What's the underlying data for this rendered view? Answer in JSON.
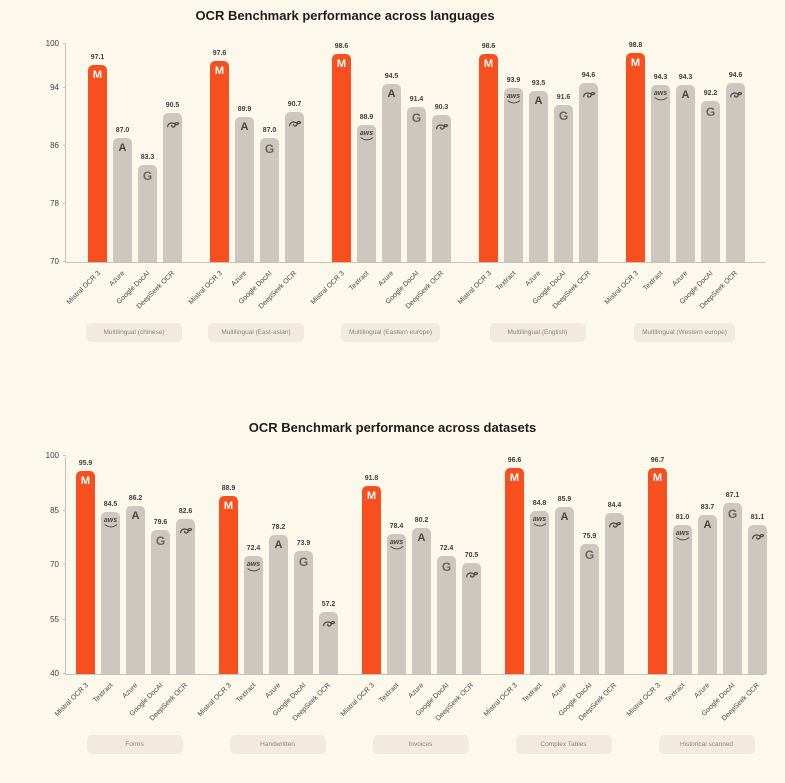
{
  "page": {
    "background_color": "#FDF8EC"
  },
  "colors": {
    "page_bg": "#FDF8EC",
    "accent_orange": "#F7501E",
    "bar_gray": "#CEC7C0",
    "icon_dark": "#4A443E",
    "axis_line": "#C9C2B8",
    "tick_text": "#3f3f3f",
    "value_text": "#3f3f3f",
    "xlabel_text": "#4a4a4a",
    "pill_bg": "#F2EBDD",
    "pill_text": "#8A837A",
    "title_text": "#1d1d1d"
  },
  "icons": {
    "Mistral OCR 3": "mistral-m-icon",
    "Textract": "aws-icon",
    "Azure": "azure-a-icon",
    "Google DocAI": "google-g-icon",
    "DeepSeek OCR": "deepseek-whale-icon"
  },
  "chart_data": [
    {
      "type": "bar",
      "title": "OCR Benchmark performance across languages",
      "ylabel": "",
      "xlabel": "",
      "ylim": [
        70,
        100
      ],
      "yticks": [
        70,
        78,
        86,
        94,
        100
      ],
      "grid": false,
      "legend_position": "none",
      "highlight_series": "Mistral OCR 3",
      "groups": [
        {
          "label": "Multilingual (chinese)",
          "bars": [
            {
              "name": "Mistral OCR 3",
              "value": 97.1
            },
            {
              "name": "Azure",
              "value": 87.0
            },
            {
              "name": "Google DocAI",
              "value": 83.3
            },
            {
              "name": "DeepSeek OCR",
              "value": 90.5
            }
          ]
        },
        {
          "label": "Multilingual (East-asian)",
          "bars": [
            {
              "name": "Mistral OCR 3",
              "value": 97.6
            },
            {
              "name": "Azure",
              "value": 89.9
            },
            {
              "name": "Google DocAI",
              "value": 87.0
            },
            {
              "name": "DeepSeek OCR",
              "value": 90.7
            }
          ]
        },
        {
          "label": "Multilingual (Eastern europe)",
          "bars": [
            {
              "name": "Mistral OCR 3",
              "value": 98.6
            },
            {
              "name": "Textract",
              "value": 88.9
            },
            {
              "name": "Azure",
              "value": 94.5
            },
            {
              "name": "Google DocAI",
              "value": 91.4
            },
            {
              "name": "DeepSeek OCR",
              "value": 90.3
            }
          ]
        },
        {
          "label": "Multilingual (English)",
          "bars": [
            {
              "name": "Mistral OCR 3",
              "value": 98.6
            },
            {
              "name": "Textract",
              "value": 93.9
            },
            {
              "name": "Azure",
              "value": 93.5
            },
            {
              "name": "Google DocAI",
              "value": 91.6
            },
            {
              "name": "DeepSeek OCR",
              "value": 94.6
            }
          ]
        },
        {
          "label": "Multilingual (Western europe)",
          "bars": [
            {
              "name": "Mistral OCR 3",
              "value": 98.8
            },
            {
              "name": "Textract",
              "value": 94.3
            },
            {
              "name": "Azure",
              "value": 94.3
            },
            {
              "name": "Google DocAI",
              "value": 92.2
            },
            {
              "name": "DeepSeek OCR",
              "value": 94.6
            }
          ]
        }
      ]
    },
    {
      "type": "bar",
      "title": "OCR Benchmark performance across datasets",
      "ylabel": "",
      "xlabel": "",
      "ylim": [
        40,
        100
      ],
      "yticks": [
        40,
        55,
        70,
        85,
        100
      ],
      "grid": false,
      "legend_position": "none",
      "highlight_series": "Mistral OCR 3",
      "groups": [
        {
          "label": "Forms",
          "bars": [
            {
              "name": "Mistral OCR 3",
              "value": 95.9
            },
            {
              "name": "Textract",
              "value": 84.5
            },
            {
              "name": "Azure",
              "value": 86.2
            },
            {
              "name": "Google DocAI",
              "value": 79.6
            },
            {
              "name": "DeepSeek OCR",
              "value": 82.6
            }
          ]
        },
        {
          "label": "Handwritten",
          "bars": [
            {
              "name": "Mistral OCR 3",
              "value": 88.9
            },
            {
              "name": "Textract",
              "value": 72.4
            },
            {
              "name": "Azure",
              "value": 78.2
            },
            {
              "name": "Google DocAI",
              "value": 73.9
            },
            {
              "name": "DeepSeek OCR",
              "value": 57.2
            }
          ]
        },
        {
          "label": "Invoices",
          "bars": [
            {
              "name": "Mistral OCR 3",
              "value": 91.8
            },
            {
              "name": "Textract",
              "value": 78.4
            },
            {
              "name": "Azure",
              "value": 80.2
            },
            {
              "name": "Google DocAI",
              "value": 72.4
            },
            {
              "name": "DeepSeek OCR",
              "value": 70.5
            }
          ]
        },
        {
          "label": "Complex Tables",
          "bars": [
            {
              "name": "Mistral OCR 3",
              "value": 96.6
            },
            {
              "name": "Textract",
              "value": 84.8
            },
            {
              "name": "Azure",
              "value": 85.9
            },
            {
              "name": "Google DocAI",
              "value": 75.9
            },
            {
              "name": "DeepSeek OCR",
              "value": 84.4
            }
          ]
        },
        {
          "label": "Historical scanned",
          "bars": [
            {
              "name": "Mistral OCR 3",
              "value": 96.7
            },
            {
              "name": "Textract",
              "value": 81.0
            },
            {
              "name": "Azure",
              "value": 83.7
            },
            {
              "name": "Google DocAI",
              "value": 87.1
            },
            {
              "name": "DeepSeek OCR",
              "value": 81.1
            }
          ]
        }
      ]
    }
  ]
}
